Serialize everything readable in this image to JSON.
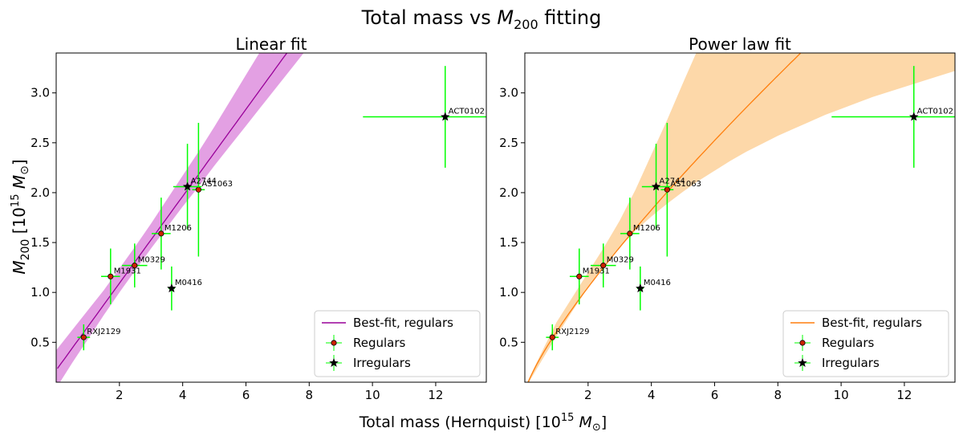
{
  "figure": {
    "suptitle_main": "Total mass vs ",
    "suptitle_math": "M",
    "suptitle_sub": "200",
    "suptitle_tail": " fitting",
    "xlabel_main": "Total mass (Hernquist)  [10",
    "xlabel_exp": "15",
    "xlabel_unit": " M",
    "xlabel_sun": "⊙",
    "xlabel_close": "]",
    "ylabel_math": "M",
    "ylabel_sub": "200",
    "ylabel_rest": "  [10",
    "ylabel_exp": "15",
    "ylabel_unit": " M",
    "ylabel_sun": "⊙",
    "ylabel_close": "]"
  },
  "legend": {
    "fit": "Best-fit, regulars",
    "regulars": "Regulars",
    "irregulars": "Irregulars"
  },
  "chart_data": [
    {
      "type": "scatter",
      "title": "Linear fit",
      "xlim": [
        0,
        13.6
      ],
      "ylim": [
        0.1,
        3.4
      ],
      "xticks": [
        2,
        4,
        6,
        8,
        10,
        12
      ],
      "yticks": [
        0.5,
        1.0,
        1.5,
        2.0,
        2.5,
        3.0
      ],
      "fit": {
        "model": "linear",
        "intercept": 0.22,
        "slope": 0.436,
        "color": "#990099",
        "band_color": "#e3a0e3",
        "band_x": [
          0.0,
          0.5,
          1.0,
          1.5,
          2.0,
          2.5,
          3.0,
          3.5,
          4.0,
          4.5,
          5.0,
          5.5,
          6.0,
          6.5,
          7.0,
          7.5,
          8.0,
          8.5,
          9.0,
          9.5,
          10.0
        ],
        "band_lower": [
          0.04,
          0.29,
          0.53,
          0.77,
          1.0,
          1.22,
          1.44,
          1.65,
          1.86,
          2.06,
          2.27,
          2.47,
          2.67,
          2.87,
          3.07,
          3.27,
          3.47,
          3.67,
          3.87,
          4.07,
          4.27
        ],
        "band_upper": [
          0.42,
          0.62,
          0.82,
          1.02,
          1.24,
          1.46,
          1.69,
          1.93,
          2.17,
          2.41,
          2.66,
          2.92,
          3.18,
          3.44,
          3.7,
          3.97,
          4.24,
          4.51,
          4.78,
          5.05,
          5.33
        ]
      },
      "regulars": [
        {
          "name": "RXJ2129",
          "x": 0.87,
          "y": 0.55,
          "xerr": 0.2,
          "yerr": 0.13
        },
        {
          "name": "M1931",
          "x": 1.72,
          "y": 1.16,
          "xerr": 0.3,
          "yerr": 0.28
        },
        {
          "name": "M0329",
          "x": 2.48,
          "y": 1.27,
          "xerr": 0.4,
          "yerr": 0.22
        },
        {
          "name": "M1206",
          "x": 3.32,
          "y": 1.59,
          "xerr": 0.3,
          "yerr": 0.36
        },
        {
          "name": "AS1063",
          "x": 4.5,
          "y": 2.03,
          "xerr": 0.2,
          "yerr": 0.67
        }
      ],
      "irregulars": [
        {
          "name": "A2744",
          "x": 4.15,
          "y": 2.06,
          "xerr": 0.45,
          "yerr": 0.43
        },
        {
          "name": "M0416",
          "x": 3.65,
          "y": 1.04,
          "xerr": 0.1,
          "yerr": 0.22
        },
        {
          "name": "ACT0102",
          "x": 12.3,
          "y": 2.76,
          "xerr": 2.6,
          "yerr": 0.51
        }
      ]
    },
    {
      "type": "scatter",
      "title": "Power law fit",
      "xlim": [
        0,
        13.6
      ],
      "ylim": [
        0.1,
        3.4
      ],
      "xticks": [
        2,
        4,
        6,
        8,
        10,
        12
      ],
      "yticks": [
        0.5,
        1.0,
        1.5,
        2.0,
        2.5,
        3.0
      ],
      "fit": {
        "model": "power",
        "amplitude": 0.605,
        "exponent": 0.797,
        "color": "#ff7f0e",
        "band_color": "#fdd8a9",
        "band_x": [
          0.0,
          0.5,
          1.0,
          1.5,
          2.0,
          2.5,
          3.0,
          3.5,
          4.0,
          4.5,
          5.0,
          5.5,
          6.0,
          6.5,
          7.0,
          7.5,
          8.0,
          8.5,
          9.0,
          9.5,
          10.0,
          11.0,
          12.0,
          13.0,
          13.6
        ],
        "band_lower": [
          0.03,
          0.3,
          0.56,
          0.81,
          1.05,
          1.27,
          1.45,
          1.62,
          1.76,
          1.89,
          2.01,
          2.12,
          2.22,
          2.32,
          2.41,
          2.49,
          2.57,
          2.64,
          2.71,
          2.78,
          2.84,
          2.96,
          3.06,
          3.16,
          3.22
        ],
        "band_upper": [
          0.05,
          0.38,
          0.7,
          0.95,
          1.2,
          1.45,
          1.72,
          2.03,
          2.38,
          2.73,
          3.1,
          3.46,
          3.82,
          4.17,
          4.52,
          4.86,
          5.2,
          5.53,
          5.86,
          6.18,
          6.5,
          7.12,
          7.72,
          8.3,
          8.64
        ]
      },
      "regulars": [
        {
          "name": "RXJ2129",
          "x": 0.87,
          "y": 0.55,
          "xerr": 0.2,
          "yerr": 0.13
        },
        {
          "name": "M1931",
          "x": 1.72,
          "y": 1.16,
          "xerr": 0.3,
          "yerr": 0.28
        },
        {
          "name": "M0329",
          "x": 2.48,
          "y": 1.27,
          "xerr": 0.4,
          "yerr": 0.22
        },
        {
          "name": "M1206",
          "x": 3.32,
          "y": 1.59,
          "xerr": 0.3,
          "yerr": 0.36
        },
        {
          "name": "AS1063",
          "x": 4.5,
          "y": 2.03,
          "xerr": 0.2,
          "yerr": 0.67
        }
      ],
      "irregulars": [
        {
          "name": "A2744",
          "x": 4.15,
          "y": 2.06,
          "xerr": 0.45,
          "yerr": 0.43
        },
        {
          "name": "M0416",
          "x": 3.65,
          "y": 1.04,
          "xerr": 0.1,
          "yerr": 0.22
        },
        {
          "name": "ACT0102",
          "x": 12.3,
          "y": 2.76,
          "xerr": 2.6,
          "yerr": 0.51
        }
      ]
    }
  ],
  "colors": {
    "errorbar": "#00ff00",
    "regular_marker": "#cc2200",
    "irregular_marker": "#000000"
  }
}
